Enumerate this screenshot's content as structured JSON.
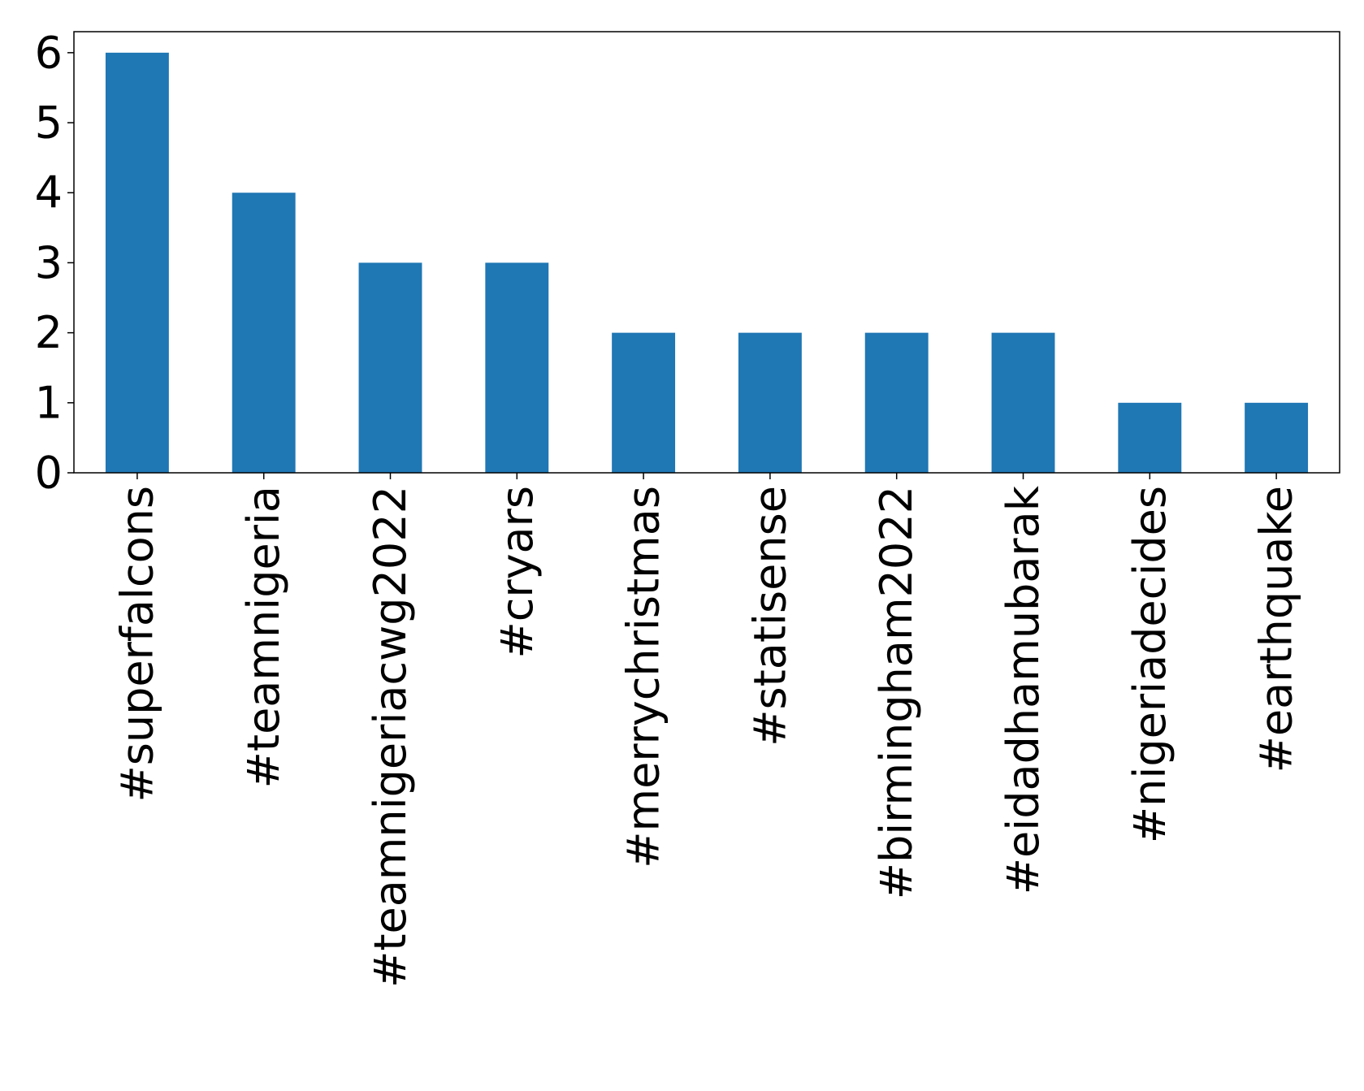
{
  "chart_data": {
    "type": "bar",
    "title": "",
    "xlabel": "",
    "ylabel": "",
    "categories": [
      "#superfalcons",
      "#teamnigeria",
      "#teamnigeriacwg2022",
      "#cryars",
      "#merrychristmas",
      "#statisense",
      "#birmingham2022",
      "#eidadhamubarak",
      "#nigeriadecides",
      "#earthquake"
    ],
    "values": [
      6,
      4,
      3,
      3,
      2,
      2,
      2,
      2,
      1,
      1
    ],
    "ylim": [
      0,
      6.3
    ],
    "yticks": [
      "0",
      "1",
      "2",
      "3",
      "4",
      "5",
      "6"
    ],
    "bar_color": "#1f77b4",
    "grid": false,
    "legend": "none"
  }
}
